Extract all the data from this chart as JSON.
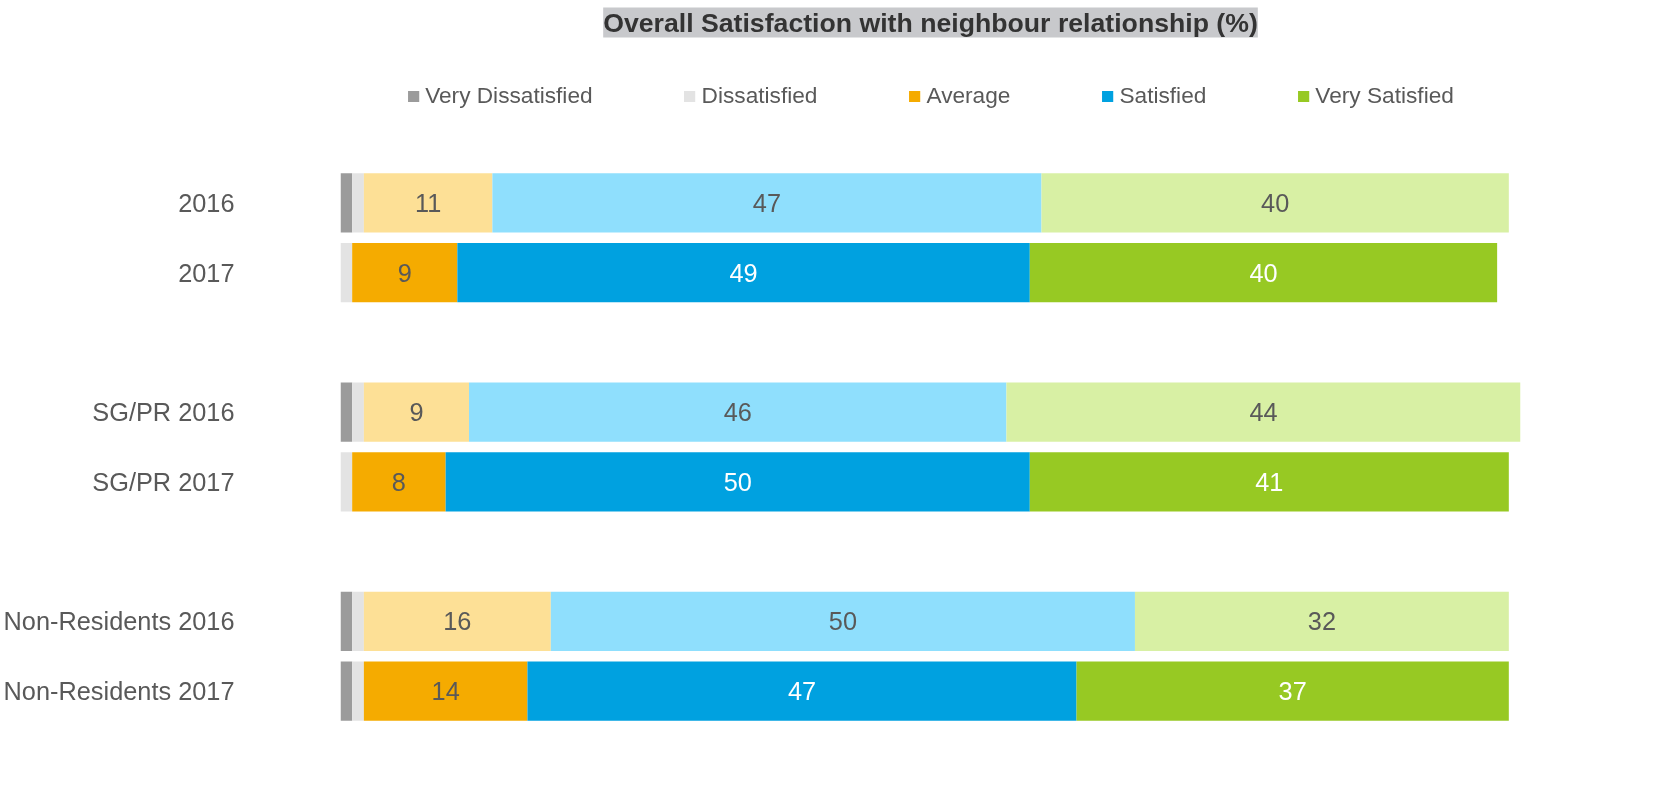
{
  "chart_data": {
    "type": "bar",
    "orientation": "horizontal",
    "stacked": true,
    "xlim": [
      0,
      101
    ],
    "tick_labels": "y",
    "title": "Overall Satisfaction with neighbour relationship (%)",
    "legend": "top",
    "categories": [
      "2016",
      "2017",
      null,
      "SG/PR 2016",
      "SG/PR 2017",
      null,
      "Non-Residents 2016",
      "Non-Residents 2017"
    ],
    "series": [
      {
        "name": "Very Dissatisfied",
        "color": "#9b9b9b",
        "colors": [
          "#9b9b9b",
          "#9b9b9b",
          null,
          "#9b9b9b",
          "#9b9b9b",
          null,
          "#9b9b9b",
          "#9b9b9b"
        ],
        "values": [
          1,
          0,
          null,
          1,
          0,
          null,
          1,
          1
        ],
        "value_labels": [
          null,
          null,
          null,
          null,
          null,
          null,
          null,
          null
        ]
      },
      {
        "name": "Dissatisfied",
        "color": "#e3e3e3",
        "colors": [
          "#e3e3e3",
          "#e3e3e3",
          null,
          "#e3e3e3",
          "#e3e3e3",
          null,
          "#e3e3e3",
          "#e3e3e3"
        ],
        "values": [
          1,
          1,
          null,
          1,
          1,
          null,
          1,
          1
        ],
        "value_labels": [
          null,
          null,
          null,
          null,
          null,
          null,
          null,
          null
        ]
      },
      {
        "name": "Average",
        "color": "#f5ab00",
        "colors": [
          "#fde096",
          "#f5ab00",
          null,
          "#fde096",
          "#f5ab00",
          null,
          "#fde096",
          "#f5ab00"
        ],
        "values": [
          11,
          9,
          null,
          9,
          8,
          null,
          16,
          14
        ],
        "value_labels": [
          "11",
          "9",
          null,
          "9",
          "8",
          null,
          "16",
          "14"
        ]
      },
      {
        "name": "Satisfied",
        "color": "#00a1e0",
        "colors": [
          "#8fdffd",
          "#00a1e0",
          null,
          "#8fdffd",
          "#00a1e0",
          null,
          "#8fdffd",
          "#00a1e0"
        ],
        "values": [
          47,
          49,
          null,
          46,
          50,
          null,
          50,
          47
        ],
        "value_labels": [
          "47",
          "49",
          null,
          "46",
          "50",
          null,
          "50",
          "47"
        ]
      },
      {
        "name": "Very Satisfied",
        "color": "#97c923",
        "colors": [
          "#d8f0a4",
          "#97c923",
          null,
          "#d8f0a4",
          "#97c923",
          null,
          "#d8f0a4",
          "#97c923"
        ],
        "values": [
          40,
          40,
          null,
          44,
          41,
          null,
          32,
          37
        ],
        "value_labels": [
          "40",
          "40",
          null,
          "44",
          "41",
          null,
          "32",
          "37"
        ]
      }
    ]
  }
}
